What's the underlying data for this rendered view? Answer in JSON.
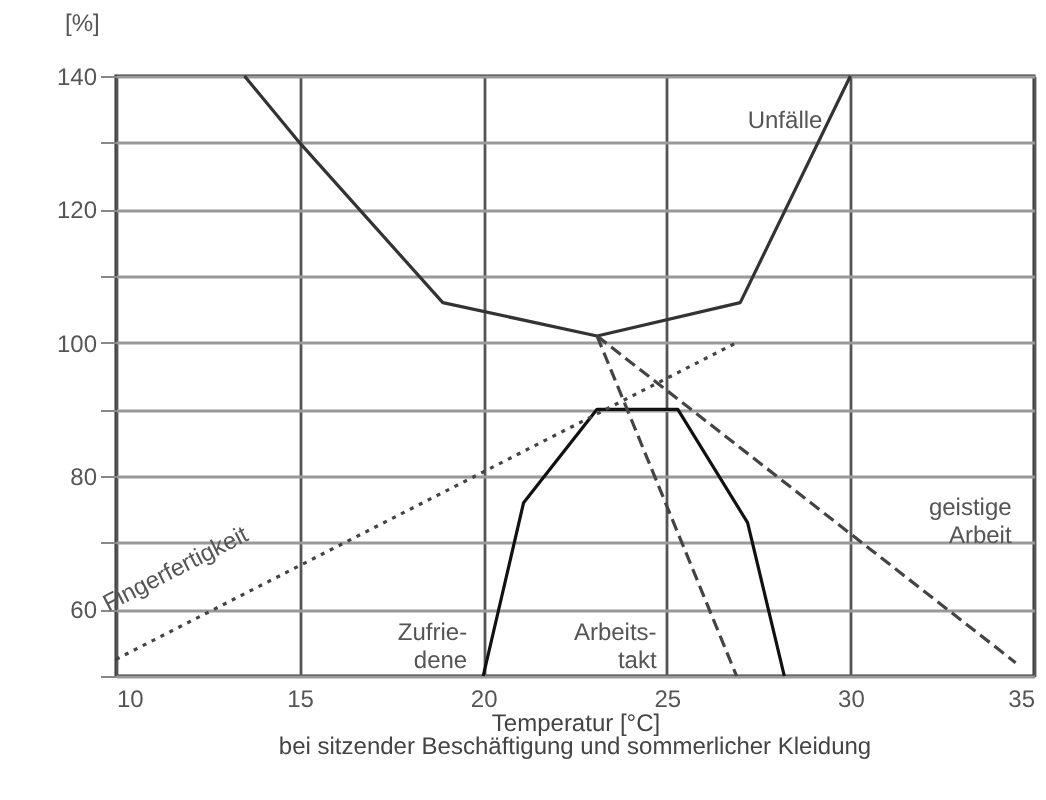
{
  "chart_data": {
    "type": "line",
    "xlabel": "Temperatur [°C]",
    "ylabel": "[%]",
    "annotations": [
      "bei sitzender Beschäftigung und sommerlicher Kleidung"
    ],
    "xlim": [
      10,
      35
    ],
    "xticks": [
      10,
      15,
      20,
      25,
      30,
      35
    ],
    "ylim": [
      50,
      140
    ],
    "yticks": [
      {
        "value": 50,
        "label": null
      },
      60,
      {
        "value": 70,
        "label": null
      },
      80,
      {
        "value": 90,
        "label": null
      },
      100,
      {
        "value": 110,
        "label": null
      },
      120,
      {
        "value": 130,
        "label": null
      },
      140
    ],
    "grid": true,
    "legend": false,
    "series": [
      {
        "name": "Unfälle",
        "color": "#333333",
        "line_style": "solid",
        "x": [
          13.5,
          15,
          18.9,
          23.1,
          27,
          30
        ],
        "values": [
          140,
          130,
          106,
          101,
          106,
          140
        ]
      },
      {
        "name": "Zufrie-dene",
        "color": "#111111",
        "line_style": "solid",
        "x": [
          20,
          21.1,
          23.1,
          25.3,
          27.2,
          28.2
        ],
        "values": [
          50,
          76,
          90,
          90,
          73,
          50
        ]
      },
      {
        "name": "Arbeits-takt",
        "color": "#444444",
        "line_style": "dashed",
        "x": [
          23.1,
          26.9
        ],
        "values": [
          101,
          50
        ]
      },
      {
        "name": "geistige Arbeit",
        "color": "#444444",
        "line_style": "dashed",
        "x": [
          23.1,
          34.5
        ],
        "values": [
          101,
          52
        ]
      },
      {
        "name": "Fingerfertigkeit",
        "color": "#444444",
        "line_style": "dotted",
        "x": [
          10,
          26.9
        ],
        "values": [
          52.5,
          100
        ]
      }
    ]
  }
}
